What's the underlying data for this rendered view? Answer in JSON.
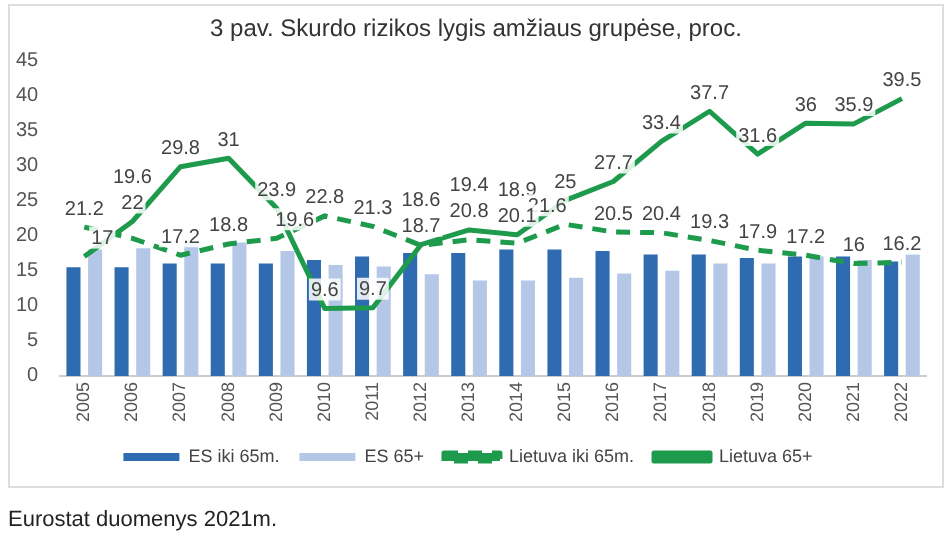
{
  "chart_data": {
    "type": "bar",
    "title": "3 pav. Skurdo rizikos lygis amžiaus grupėse, proc.",
    "categories": [
      "2005",
      "2006",
      "2007",
      "2008",
      "2009",
      "2010",
      "2011",
      "2012",
      "2013",
      "2014",
      "2015",
      "2016",
      "2017",
      "2018",
      "2019",
      "2020",
      "2021",
      "2022"
    ],
    "series": [
      {
        "name": "ES iki 65m.",
        "color": "#2e6bb0",
        "values": [
          15.5,
          15.5,
          16,
          16,
          16,
          16.5,
          17,
          17.5,
          17.5,
          18,
          18,
          17.8,
          17.3,
          17.3,
          16.8,
          17,
          17,
          16.3
        ]
      },
      {
        "name": "ES 65+",
        "color": "#b4c7e7",
        "values": [
          18,
          18.2,
          19,
          19,
          17.8,
          15.8,
          15.6,
          14.5,
          13.6,
          13.6,
          14,
          14.6,
          15,
          16,
          16,
          17,
          16.5,
          17.3
        ]
      },
      {
        "name": "Lietuva iki 65m.",
        "type": "line",
        "line_style": "dashed",
        "color": "#1e9a4c",
        "values": [
          21.2,
          19.6,
          17.2,
          18.8,
          19.6,
          22.8,
          21.3,
          18.6,
          19.4,
          18.9,
          21.6,
          20.5,
          20.4,
          19.3,
          17.9,
          17.2,
          16,
          16.2
        ],
        "value_labels": [
          "21.2",
          "19.6",
          "17.2",
          "18.8",
          "19.6",
          "22.8",
          "21.3",
          "18.6",
          "19.4",
          "18.9",
          "21.6",
          "20.5",
          "20.4",
          "19.3",
          "17.9",
          "17.2",
          "16",
          "16.2"
        ]
      },
      {
        "name": "Lietuva 65+",
        "type": "line",
        "line_style": "solid",
        "color": "#1e9a4c",
        "values": [
          17,
          22,
          29.8,
          31,
          23.9,
          9.6,
          9.7,
          18.7,
          20.8,
          20.1,
          25,
          27.7,
          33.4,
          37.7,
          31.6,
          36,
          35.9,
          39.5
        ],
        "value_labels": [
          "17",
          "22",
          "29.8",
          "31",
          "23.9",
          "9.6",
          "9.7",
          "18.7",
          "20.8",
          "20.1",
          "25",
          "27.7",
          "33.4",
          "37.7",
          "31.6",
          "36",
          "35.9",
          "39.5"
        ]
      }
    ],
    "ylim": [
      0,
      45
    ],
    "yticks": [
      0,
      5,
      10,
      15,
      20,
      25,
      30,
      35,
      40,
      45
    ],
    "grid": false,
    "legend": "bottom",
    "marker": "none",
    "annotations": [
      "Eurostat duomenys 2021m."
    ]
  }
}
